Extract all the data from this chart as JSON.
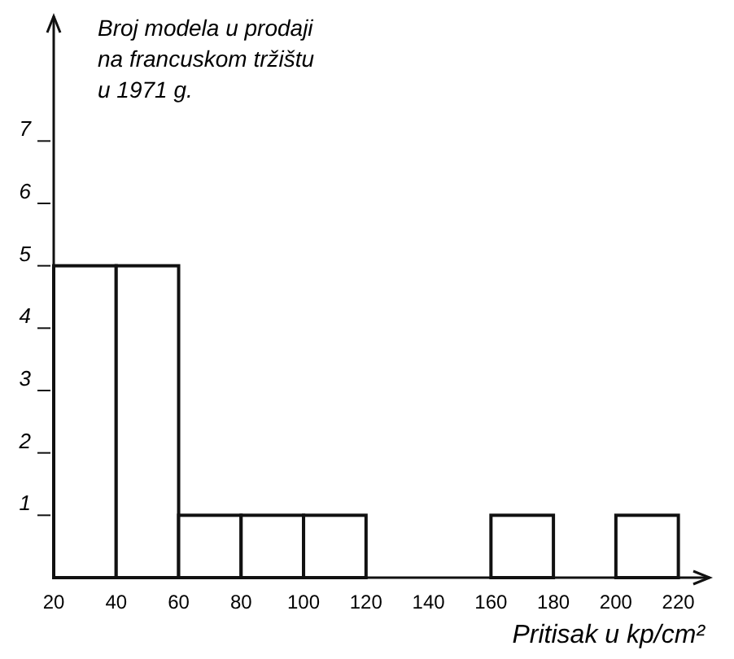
{
  "chart_data": {
    "type": "histogram",
    "ylabel": "Broj modela u prodaji\nna francuskom tržištu\nu 1971 g.",
    "xlabel": "Pritisak u kp/cm²",
    "bins": [
      20,
      40,
      60,
      80,
      100,
      120,
      140,
      160,
      180,
      200,
      220
    ],
    "values": [
      5,
      5,
      1,
      1,
      1,
      0,
      0,
      1,
      0,
      1
    ],
    "color": "#ffffff",
    "xlim": [
      20,
      230
    ],
    "xticks": [
      20,
      40,
      60,
      80,
      100,
      120,
      140,
      160,
      180,
      200,
      220
    ],
    "ylim": [
      0,
      9
    ],
    "yticks": [
      1,
      2,
      3,
      4,
      5,
      6,
      7
    ],
    "grid": false
  }
}
